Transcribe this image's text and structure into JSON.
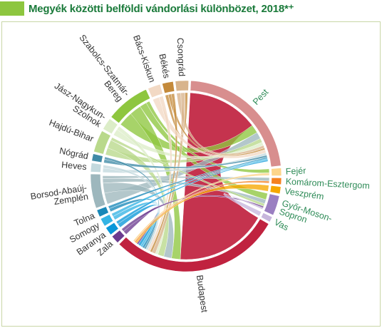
{
  "header": {
    "title": "Megyék közötti belföldi vándorlási különbözet, 2018*⁺",
    "accent_color": "#8dc63f",
    "title_color": "#1a7a3a"
  },
  "chart_data": {
    "type": "chord",
    "nodes": [
      {
        "name": "Pest",
        "label_lines": [
          "Pest"
        ],
        "color": "#d88e8e",
        "label_color": "#2e8b57",
        "share": 24.0
      },
      {
        "name": "Fejér",
        "label_lines": [
          "Fejér"
        ],
        "color": "#fdd58a",
        "label_color": "#2e8b57",
        "share": 1.4
      },
      {
        "name": "Komárom-Esztergom",
        "label_lines": [
          "Komárom-Esztergom"
        ],
        "color": "#f58220",
        "label_color": "#2e8b57",
        "share": 1.2
      },
      {
        "name": "Veszprém",
        "label_lines": [
          "Veszprém"
        ],
        "color": "#f6a800",
        "label_color": "#2e8b57",
        "share": 1.3
      },
      {
        "name": "Győr-Moson-Sopron",
        "label_lines": [
          "Győr-Moson-",
          "Sopron"
        ],
        "color": "#9a7fc1",
        "label_color": "#2e8b57",
        "share": 3.6
      },
      {
        "name": "Vas",
        "label_lines": [
          "Vas"
        ],
        "color": "#c7b6dc",
        "label_color": "#2e8b57",
        "share": 1.0
      },
      {
        "name": "Budapest",
        "label_lines": [
          "Budapest"
        ],
        "color": "#c0223f",
        "label_color": "#333333",
        "share": 31.0
      },
      {
        "name": "Zala",
        "label_lines": [
          "Zala"
        ],
        "color": "#6b3b8f",
        "label_color": "#333333",
        "share": 1.5
      },
      {
        "name": "Baranya",
        "label_lines": [
          "Baranya"
        ],
        "color": "#0a97d9",
        "label_color": "#333333",
        "share": 1.5
      },
      {
        "name": "Somogy",
        "label_lines": [
          "Somogy"
        ],
        "color": "#34b4e4",
        "label_color": "#333333",
        "share": 1.5
      },
      {
        "name": "Tolna",
        "label_lines": [
          "Tolna"
        ],
        "color": "#1888b8",
        "label_color": "#333333",
        "share": 1.3
      },
      {
        "name": "Borsod-Abaúj-Zemplén",
        "label_lines": [
          "Borsod-Abaúj-",
          "Zemplén"
        ],
        "color": "#9db7bd",
        "label_color": "#333333",
        "share": 6.2
      },
      {
        "name": "Heves",
        "label_lines": [
          "Heves"
        ],
        "color": "#c3d9de",
        "label_color": "#333333",
        "share": 1.6
      },
      {
        "name": "Nógrád",
        "label_lines": [
          "Nógrád"
        ],
        "color": "#3f8aa6",
        "label_color": "#333333",
        "share": 1.3
      },
      {
        "name": "Hajdú-Bihar",
        "label_lines": [
          "Hajdú-Bihar"
        ],
        "color": "#b9d98b",
        "label_color": "#333333",
        "share": 4.0
      },
      {
        "name": "Jász-Nagykun-Szolnok",
        "label_lines": [
          "Jász-Nagykun-",
          "Szolnok"
        ],
        "color": "#dcedc8",
        "label_color": "#333333",
        "share": 2.2
      },
      {
        "name": "Szabolcs-Szatmár-Bereg",
        "label_lines": [
          "Szabolcs-Szatmár-",
          "Bereg"
        ],
        "color": "#8ec63f",
        "label_color": "#333333",
        "share": 8.0
      },
      {
        "name": "Bács-Kiskun",
        "label_lines": [
          "Bács-Kiskun"
        ],
        "color": "#f2d9c4",
        "label_color": "#333333",
        "share": 2.3
      },
      {
        "name": "Békés",
        "label_lines": [
          "Békés"
        ],
        "color": "#c48a3b",
        "label_color": "#333333",
        "share": 2.0
      },
      {
        "name": "Csongrád",
        "label_lines": [
          "Csongrád"
        ],
        "color": "#d8b48c",
        "label_color": "#333333",
        "share": 2.4
      }
    ],
    "flows": [
      {
        "from": "Budapest",
        "to": "Pest",
        "value": 21.0,
        "color": "#c0223f"
      },
      {
        "from": "Szabolcs-Szatmár-Bereg",
        "to": "Pest",
        "value": 2.5,
        "color": "#8ec63f"
      },
      {
        "from": "Szabolcs-Szatmár-Bereg",
        "to": "Budapest",
        "value": 2.0,
        "color": "#8ec63f"
      },
      {
        "from": "Szabolcs-Szatmár-Bereg",
        "to": "Győr-Moson-Sopron",
        "value": 1.2,
        "color": "#8ec63f"
      },
      {
        "from": "Szabolcs-Szatmár-Bereg",
        "to": "Fejér",
        "value": 0.6,
        "color": "#8ec63f"
      },
      {
        "from": "Borsod-Abaúj-Zemplén",
        "to": "Pest",
        "value": 2.0,
        "color": "#9db7bd"
      },
      {
        "from": "Borsod-Abaúj-Zemplén",
        "to": "Budapest",
        "value": 1.8,
        "color": "#9db7bd"
      },
      {
        "from": "Borsod-Abaúj-Zemplén",
        "to": "Győr-Moson-Sopron",
        "value": 0.8,
        "color": "#9db7bd"
      },
      {
        "from": "Borsod-Abaúj-Zemplén",
        "to": "Komárom-Esztergom",
        "value": 0.5,
        "color": "#9db7bd"
      },
      {
        "from": "Hajdú-Bihar",
        "to": "Pest",
        "value": 1.2,
        "color": "#b9d98b"
      },
      {
        "from": "Hajdú-Bihar",
        "to": "Budapest",
        "value": 1.4,
        "color": "#b9d98b"
      },
      {
        "from": "Hajdú-Bihar",
        "to": "Győr-Moson-Sopron",
        "value": 0.5,
        "color": "#b9d98b"
      },
      {
        "from": "Jász-Nagykun-Szolnok",
        "to": "Pest",
        "value": 1.0,
        "color": "#dcedc8"
      },
      {
        "from": "Jász-Nagykun-Szolnok",
        "to": "Budapest",
        "value": 0.6,
        "color": "#dcedc8"
      },
      {
        "from": "Csongrád",
        "to": "Pest",
        "value": 0.8,
        "color": "#d8b48c"
      },
      {
        "from": "Csongrád",
        "to": "Budapest",
        "value": 0.8,
        "color": "#d8b48c"
      },
      {
        "from": "Békés",
        "to": "Csongrád",
        "value": 0.5,
        "color": "#c48a3b"
      },
      {
        "from": "Békés",
        "to": "Pest",
        "value": 0.5,
        "color": "#c48a3b"
      },
      {
        "from": "Békés",
        "to": "Budapest",
        "value": 0.5,
        "color": "#c48a3b"
      },
      {
        "from": "Bács-Kiskun",
        "to": "Pest",
        "value": 1.0,
        "color": "#f2d9c4"
      },
      {
        "from": "Bács-Kiskun",
        "to": "Budapest",
        "value": 0.6,
        "color": "#f2d9c4"
      },
      {
        "from": "Heves",
        "to": "Pest",
        "value": 0.7,
        "color": "#c3d9de"
      },
      {
        "from": "Heves",
        "to": "Budapest",
        "value": 0.5,
        "color": "#c3d9de"
      },
      {
        "from": "Nógrád",
        "to": "Pest",
        "value": 0.6,
        "color": "#3f8aa6"
      },
      {
        "from": "Nógrád",
        "to": "Budapest",
        "value": 0.4,
        "color": "#3f8aa6"
      },
      {
        "from": "Tolna",
        "to": "Budapest",
        "value": 0.5,
        "color": "#1888b8"
      },
      {
        "from": "Tolna",
        "to": "Pest",
        "value": 0.4,
        "color": "#1888b8"
      },
      {
        "from": "Somogy",
        "to": "Budapest",
        "value": 0.5,
        "color": "#34b4e4"
      },
      {
        "from": "Somogy",
        "to": "Pest",
        "value": 0.4,
        "color": "#34b4e4"
      },
      {
        "from": "Baranya",
        "to": "Budapest",
        "value": 0.6,
        "color": "#0a97d9"
      },
      {
        "from": "Baranya",
        "to": "Pest",
        "value": 0.4,
        "color": "#0a97d9"
      },
      {
        "from": "Zala",
        "to": "Budapest",
        "value": 0.4,
        "color": "#6b3b8f"
      },
      {
        "from": "Zala",
        "to": "Győr-Moson-Sopron",
        "value": 0.3,
        "color": "#6b3b8f"
      },
      {
        "from": "Vas",
        "to": "Győr-Moson-Sopron",
        "value": 0.3,
        "color": "#c7b6dc"
      },
      {
        "from": "Veszprém",
        "to": "Budapest",
        "value": 0.3,
        "color": "#f6a800"
      },
      {
        "from": "Komárom-Esztergom",
        "to": "Budapest",
        "value": 0.3,
        "color": "#f58220"
      },
      {
        "from": "Fejér",
        "to": "Budapest",
        "value": 0.4,
        "color": "#fdd58a"
      }
    ]
  }
}
